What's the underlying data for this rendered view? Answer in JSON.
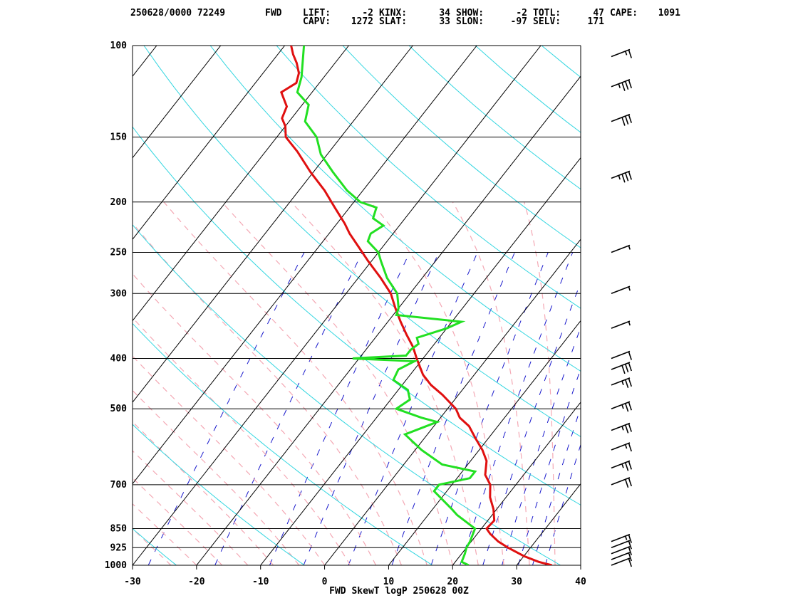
{
  "header": {
    "row1": [
      "250628/0000 72249",
      "FWD",
      "LIFT:",
      "-2",
      "KINX:",
      "34",
      "SHOW:",
      "-2",
      "TOTL:",
      "47",
      "CAPE:",
      "1091"
    ],
    "row2": [
      "CAPV:",
      "1272",
      "SLAT:",
      "33",
      "SLON:",
      "-97",
      "SELV:",
      "171"
    ]
  },
  "caption": "FWD SkewT logP 250628 00Z",
  "colors": {
    "temperature": "#e01010",
    "dewpoint": "#22e022",
    "isotherm": "#000000",
    "isobar": "#000000",
    "dry_adiabat": "#33d6e0",
    "moist_adiabat": "#f4a8b4",
    "mixing_ratio": "#1a1acc",
    "wind_barb": "#000000"
  },
  "chart_data": {
    "type": "line",
    "title": "FWD SkewT logP 250628 00Z",
    "y_scale": "log-pressure",
    "ylim": [
      1000,
      100
    ],
    "xlim": [
      -30,
      40
    ],
    "y_ticks": [
      1000,
      925,
      850,
      700,
      500,
      400,
      300,
      250,
      200,
      150,
      100
    ],
    "x_ticks": [
      -30,
      -20,
      -10,
      0,
      10,
      20,
      30,
      40
    ],
    "grid": true,
    "series": [
      {
        "key": "temperature",
        "pressure": [
          1000,
          985,
          960,
          925,
          900,
          870,
          850,
          820,
          780,
          740,
          700,
          670,
          630,
          600,
          570,
          540,
          520,
          500,
          470,
          450,
          430,
          400,
          380,
          360,
          340,
          320,
          300,
          280,
          260,
          250,
          230,
          220,
          205,
          190,
          175,
          160,
          150,
          143,
          138,
          131,
          123,
          118,
          113,
          108,
          104,
          100
        ],
        "values": [
          35.5,
          33.0,
          30.0,
          26.5,
          24.2,
          22.0,
          20.8,
          21.0,
          19.5,
          17.5,
          16.0,
          14.0,
          12.5,
          10.5,
          8.0,
          5.5,
          3.0,
          1.3,
          -2.5,
          -5.5,
          -8.0,
          -11.0,
          -13.0,
          -15.5,
          -18.0,
          -20.5,
          -23.0,
          -26.5,
          -30.5,
          -32.5,
          -36.8,
          -38.8,
          -42.3,
          -46.0,
          -50.5,
          -55.0,
          -58.6,
          -60.0,
          -61.5,
          -62.2,
          -64.8,
          -63.6,
          -64.4,
          -66.0,
          -67.6,
          -69.0
        ]
      },
      {
        "key": "dewpoint",
        "pressure": [
          1000,
          985,
          950,
          925,
          900,
          850,
          800,
          780,
          720,
          700,
          680,
          660,
          640,
          600,
          560,
          530,
          520,
          500,
          480,
          460,
          440,
          420,
          405,
          400,
          395,
          385,
          375,
          365,
          350,
          340,
          330,
          320,
          300,
          280,
          260,
          250,
          238,
          230,
          222,
          215,
          205,
          200,
          190,
          175,
          162,
          150,
          140,
          130,
          123,
          115,
          100
        ],
        "values": [
          22.5,
          21.0,
          20.5,
          20.0,
          19.8,
          19.0,
          14.5,
          13.0,
          8.0,
          8.0,
          12.0,
          12.0,
          6.0,
          1.0,
          -3.5,
          0.0,
          -3.0,
          -8.0,
          -7.0,
          -8.5,
          -12.0,
          -12.5,
          -11.0,
          -21.0,
          -13.0,
          -13.0,
          -12.5,
          -13.5,
          -10.0,
          -8.5,
          -19.5,
          -20.0,
          -22.0,
          -25.5,
          -28.5,
          -30.0,
          -33.0,
          -33.5,
          -32.5,
          -35.0,
          -35.8,
          -39.0,
          -42.5,
          -47.0,
          -51.0,
          -53.8,
          -57.5,
          -59.0,
          -62.3,
          -63.5,
          -67.0
        ]
      }
    ],
    "wind_barbs": [
      {
        "pressure": 1000,
        "speed": 10
      },
      {
        "pressure": 975,
        "speed": 10
      },
      {
        "pressure": 950,
        "speed": 10
      },
      {
        "pressure": 925,
        "speed": 10
      },
      {
        "pressure": 900,
        "speed": 15
      },
      {
        "pressure": 700,
        "speed": 20
      },
      {
        "pressure": 650,
        "speed": 25
      },
      {
        "pressure": 600,
        "speed": 15
      },
      {
        "pressure": 550,
        "speed": 25
      },
      {
        "pressure": 500,
        "speed": 25
      },
      {
        "pressure": 450,
        "speed": 25
      },
      {
        "pressure": 420,
        "speed": 30
      },
      {
        "pressure": 400,
        "speed": 10
      },
      {
        "pressure": 350,
        "speed": 5
      },
      {
        "pressure": 300,
        "speed": 5
      },
      {
        "pressure": 250,
        "speed": 5
      },
      {
        "pressure": 180,
        "speed": 35
      },
      {
        "pressure": 140,
        "speed": 30
      },
      {
        "pressure": 120,
        "speed": 35
      },
      {
        "pressure": 105,
        "speed": 15
      }
    ]
  }
}
